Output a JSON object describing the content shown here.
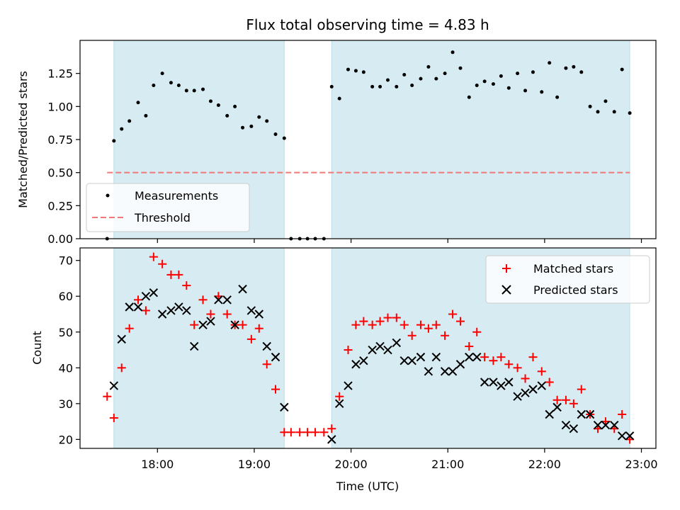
{
  "chart_data": [
    {
      "type": "scatter",
      "title": "Flux total observing time = 4.83 h",
      "ylabel": "Matched/Predicted stars",
      "xlabel": "",
      "x_unit": "hours UTC",
      "xlim": [
        17.2,
        23.15
      ],
      "ylim": [
        0.0,
        1.5
      ],
      "yticks": [
        "0.00",
        "0.25",
        "0.50",
        "0.75",
        "1.00",
        "1.25"
      ],
      "ytick_values": [
        0,
        0.25,
        0.5,
        0.75,
        1.0,
        1.25
      ],
      "observing_windows": [
        [
          17.55,
          19.31
        ],
        [
          19.8,
          22.88
        ]
      ],
      "threshold": {
        "name": "Threshold",
        "value": 0.5,
        "x_range": [
          17.48,
          22.88
        ],
        "color": "#f07878"
      },
      "legend": {
        "position": "lower-left",
        "entries": [
          "Measurements",
          "Threshold"
        ]
      },
      "series": [
        {
          "name": "Measurements",
          "color": "#000000",
          "marker": "dot",
          "points": [
            [
              17.48,
              0.0
            ],
            [
              17.55,
              0.74
            ],
            [
              17.63,
              0.83
            ],
            [
              17.71,
              0.89
            ],
            [
              17.8,
              1.03
            ],
            [
              17.88,
              0.93
            ],
            [
              17.96,
              1.16
            ],
            [
              18.05,
              1.25
            ],
            [
              18.14,
              1.18
            ],
            [
              18.22,
              1.16
            ],
            [
              18.3,
              1.12
            ],
            [
              18.38,
              1.12
            ],
            [
              18.47,
              1.13
            ],
            [
              18.55,
              1.04
            ],
            [
              18.63,
              1.01
            ],
            [
              18.72,
              0.93
            ],
            [
              18.8,
              1.0
            ],
            [
              18.88,
              0.84
            ],
            [
              18.97,
              0.85
            ],
            [
              19.05,
              0.92
            ],
            [
              19.13,
              0.89
            ],
            [
              19.22,
              0.79
            ],
            [
              19.31,
              0.76
            ],
            [
              19.38,
              0.0
            ],
            [
              19.47,
              0.0
            ],
            [
              19.55,
              0.0
            ],
            [
              19.63,
              0.0
            ],
            [
              19.72,
              0.0
            ],
            [
              19.8,
              1.15
            ],
            [
              19.88,
              1.06
            ],
            [
              19.97,
              1.28
            ],
            [
              20.05,
              1.27
            ],
            [
              20.13,
              1.26
            ],
            [
              20.22,
              1.15
            ],
            [
              20.3,
              1.15
            ],
            [
              20.38,
              1.2
            ],
            [
              20.47,
              1.15
            ],
            [
              20.55,
              1.24
            ],
            [
              20.63,
              1.16
            ],
            [
              20.72,
              1.21
            ],
            [
              20.8,
              1.3
            ],
            [
              20.88,
              1.21
            ],
            [
              20.97,
              1.25
            ],
            [
              21.05,
              1.41
            ],
            [
              21.13,
              1.29
            ],
            [
              21.22,
              1.07
            ],
            [
              21.3,
              1.16
            ],
            [
              21.38,
              1.19
            ],
            [
              21.47,
              1.17
            ],
            [
              21.55,
              1.23
            ],
            [
              21.63,
              1.14
            ],
            [
              21.72,
              1.25
            ],
            [
              21.8,
              1.12
            ],
            [
              21.88,
              1.26
            ],
            [
              21.97,
              1.11
            ],
            [
              22.05,
              1.33
            ],
            [
              22.13,
              1.07
            ],
            [
              22.22,
              1.29
            ],
            [
              22.3,
              1.3
            ],
            [
              22.38,
              1.26
            ],
            [
              22.47,
              1.0
            ],
            [
              22.55,
              0.96
            ],
            [
              22.63,
              1.04
            ],
            [
              22.72,
              0.96
            ],
            [
              22.8,
              1.28
            ],
            [
              22.88,
              0.95
            ]
          ]
        }
      ]
    },
    {
      "type": "scatter",
      "title": "",
      "ylabel": "Count",
      "xlabel": "Time (UTC)",
      "x_unit": "hours UTC",
      "xlim": [
        17.2,
        23.15
      ],
      "ylim": [
        17.5,
        73.5
      ],
      "yticks": [
        "20",
        "30",
        "40",
        "50",
        "60",
        "70"
      ],
      "ytick_values": [
        20,
        30,
        40,
        50,
        60,
        70
      ],
      "xticks": [
        "18:00",
        "19:00",
        "20:00",
        "21:00",
        "22:00",
        "23:00"
      ],
      "xtick_values": [
        18,
        19,
        20,
        21,
        22,
        23
      ],
      "observing_windows": [
        [
          17.55,
          19.31
        ],
        [
          19.8,
          22.88
        ]
      ],
      "legend": {
        "position": "upper-right",
        "entries": [
          "Matched stars",
          "Predicted stars"
        ]
      },
      "series": [
        {
          "name": "Matched stars",
          "color": "#ff0000",
          "marker": "plus",
          "points": [
            [
              17.48,
              32
            ],
            [
              17.55,
              26
            ],
            [
              17.63,
              40
            ],
            [
              17.71,
              51
            ],
            [
              17.8,
              59
            ],
            [
              17.88,
              56
            ],
            [
              17.96,
              71
            ],
            [
              18.05,
              69
            ],
            [
              18.14,
              66
            ],
            [
              18.22,
              66
            ],
            [
              18.3,
              63
            ],
            [
              18.38,
              52
            ],
            [
              18.47,
              59
            ],
            [
              18.55,
              55
            ],
            [
              18.63,
              60
            ],
            [
              18.72,
              55
            ],
            [
              18.8,
              52
            ],
            [
              18.88,
              52
            ],
            [
              18.97,
              48
            ],
            [
              19.05,
              51
            ],
            [
              19.13,
              41
            ],
            [
              19.22,
              34
            ],
            [
              19.31,
              22
            ],
            [
              19.38,
              22
            ],
            [
              19.47,
              22
            ],
            [
              19.55,
              22
            ],
            [
              19.63,
              22
            ],
            [
              19.72,
              22
            ],
            [
              19.8,
              23
            ],
            [
              19.88,
              32
            ],
            [
              19.97,
              45
            ],
            [
              20.05,
              52
            ],
            [
              20.13,
              53
            ],
            [
              20.22,
              52
            ],
            [
              20.3,
              53
            ],
            [
              20.38,
              54
            ],
            [
              20.47,
              54
            ],
            [
              20.55,
              52
            ],
            [
              20.63,
              49
            ],
            [
              20.72,
              52
            ],
            [
              20.8,
              51
            ],
            [
              20.88,
              52
            ],
            [
              20.97,
              49
            ],
            [
              21.05,
              55
            ],
            [
              21.13,
              53
            ],
            [
              21.22,
              46
            ],
            [
              21.3,
              50
            ],
            [
              21.38,
              43
            ],
            [
              21.47,
              42
            ],
            [
              21.55,
              43
            ],
            [
              21.63,
              41
            ],
            [
              21.72,
              40
            ],
            [
              21.8,
              37
            ],
            [
              21.88,
              43
            ],
            [
              21.97,
              39
            ],
            [
              22.05,
              36
            ],
            [
              22.13,
              31
            ],
            [
              22.22,
              31
            ],
            [
              22.3,
              30
            ],
            [
              22.38,
              34
            ],
            [
              22.47,
              27
            ],
            [
              22.55,
              23
            ],
            [
              22.63,
              25
            ],
            [
              22.72,
              23
            ],
            [
              22.8,
              27
            ],
            [
              22.88,
              20
            ]
          ]
        },
        {
          "name": "Predicted stars",
          "color": "#000000",
          "marker": "x",
          "points": [
            [
              17.55,
              35
            ],
            [
              17.63,
              48
            ],
            [
              17.71,
              57
            ],
            [
              17.8,
              57
            ],
            [
              17.88,
              60
            ],
            [
              17.96,
              61
            ],
            [
              18.05,
              55
            ],
            [
              18.14,
              56
            ],
            [
              18.22,
              57
            ],
            [
              18.3,
              56
            ],
            [
              18.38,
              46
            ],
            [
              18.47,
              52
            ],
            [
              18.55,
              53
            ],
            [
              18.63,
              59
            ],
            [
              18.72,
              59
            ],
            [
              18.8,
              52
            ],
            [
              18.88,
              62
            ],
            [
              18.97,
              56
            ],
            [
              19.05,
              55
            ],
            [
              19.13,
              46
            ],
            [
              19.22,
              43
            ],
            [
              19.31,
              29
            ],
            [
              19.8,
              20
            ],
            [
              19.88,
              30
            ],
            [
              19.97,
              35
            ],
            [
              20.05,
              41
            ],
            [
              20.13,
              42
            ],
            [
              20.22,
              45
            ],
            [
              20.3,
              46
            ],
            [
              20.38,
              45
            ],
            [
              20.47,
              47
            ],
            [
              20.55,
              42
            ],
            [
              20.63,
              42
            ],
            [
              20.72,
              43
            ],
            [
              20.8,
              39
            ],
            [
              20.88,
              43
            ],
            [
              20.97,
              39
            ],
            [
              21.05,
              39
            ],
            [
              21.13,
              41
            ],
            [
              21.22,
              43
            ],
            [
              21.3,
              43
            ],
            [
              21.38,
              36
            ],
            [
              21.47,
              36
            ],
            [
              21.55,
              35
            ],
            [
              21.63,
              36
            ],
            [
              21.72,
              32
            ],
            [
              21.8,
              33
            ],
            [
              21.88,
              34
            ],
            [
              21.97,
              35
            ],
            [
              22.05,
              27
            ],
            [
              22.13,
              29
            ],
            [
              22.22,
              24
            ],
            [
              22.3,
              23
            ],
            [
              22.38,
              27
            ],
            [
              22.47,
              27
            ],
            [
              22.55,
              24
            ],
            [
              22.63,
              24
            ],
            [
              22.72,
              24
            ],
            [
              22.8,
              21
            ],
            [
              22.88,
              21
            ]
          ]
        }
      ]
    }
  ]
}
